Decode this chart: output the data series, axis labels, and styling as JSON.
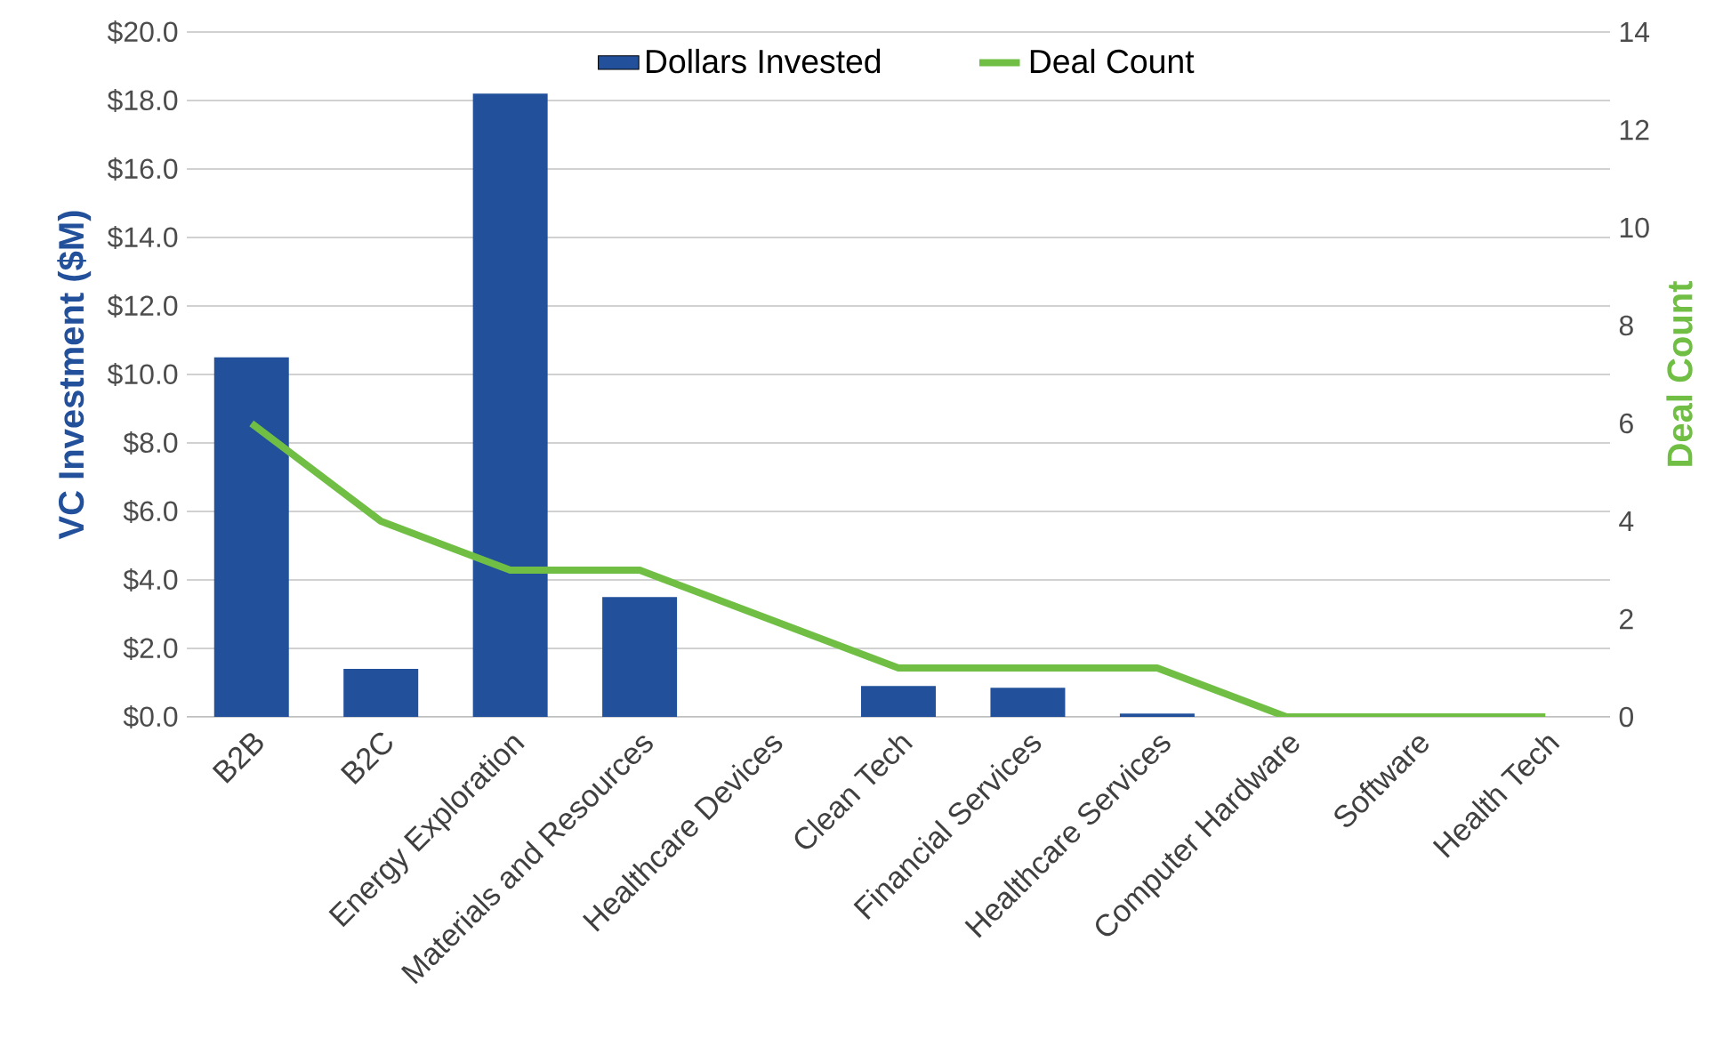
{
  "chart_data": {
    "type": "bar",
    "ylabel": "VC Investment ($M)",
    "y2label": "Deal Count",
    "categories": [
      "B2B",
      "B2C",
      "Energy Exploration",
      "Materials and Resources",
      "Healthcare Devices",
      "Clean Tech",
      "Financial Services",
      "Healthcare Services",
      "Computer Hardware",
      "Software",
      "Health Tech"
    ],
    "series": [
      {
        "name": "Dollars Invested",
        "color": "#23509b",
        "values": [
          10.5,
          1.4,
          18.2,
          3.5,
          0,
          0.9,
          0.85,
          0.1,
          0,
          0,
          0
        ]
      },
      {
        "name": "Deal Count",
        "type": "line",
        "axis": "y2",
        "color": "#70bf44",
        "values": [
          6,
          4,
          3,
          3,
          2,
          1,
          1,
          1,
          0,
          0,
          0
        ]
      }
    ],
    "ylim": [
      0,
      20
    ],
    "yticks": [
      {
        "value": 0,
        "label": "$0.0"
      },
      {
        "value": 2,
        "label": "$2.0"
      },
      {
        "value": 4,
        "label": "$4.0"
      },
      {
        "value": 6,
        "label": "$6.0"
      },
      {
        "value": 8,
        "label": "$8.0"
      },
      {
        "value": 10,
        "label": "$10.0"
      },
      {
        "value": 12,
        "label": "$12.0"
      },
      {
        "value": 14,
        "label": "$14.0"
      },
      {
        "value": 16,
        "label": "$16.0"
      },
      {
        "value": 18,
        "label": "$18.0"
      },
      {
        "value": 20,
        "label": "$20.0"
      }
    ],
    "y2lim": [
      0,
      14
    ],
    "y2ticks": [
      0,
      2,
      4,
      6,
      8,
      10,
      12,
      14
    ],
    "grid": "y",
    "legend": "top"
  }
}
